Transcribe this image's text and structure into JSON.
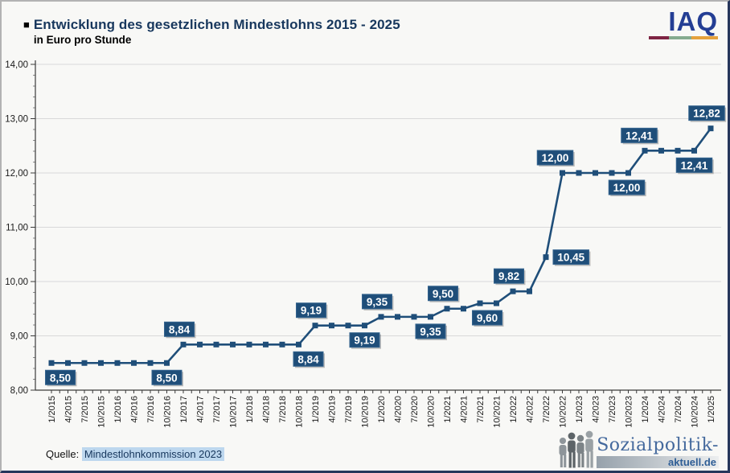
{
  "header": {
    "bullet": "■",
    "title": "Entwicklung des gesetzlichen Mindestlohns 2015 - 2025",
    "subtitle": "in Euro pro Stunde"
  },
  "iaq": {
    "text": "IAQ"
  },
  "source": {
    "prefix": "Quelle:",
    "reference": "Mindestlohnkommission 2023"
  },
  "branding": {
    "wordmark": "Sozialpolitik-",
    "domain": "aktuell.de"
  },
  "colors": {
    "line": "#1f4e79",
    "marker": "#1f4e79",
    "label_bg": "#1f4e79",
    "label_border": "#35648f",
    "label_text": "#ffffff",
    "title_text": "#17375d",
    "grid": "#d9d9d9",
    "axis": "#3b3b3b",
    "tick_minor": "#8a8a8a",
    "axis_text": "#1a1a1a",
    "source_highlight": "#bdd7ee",
    "iaq_blue": "#243e94",
    "iaq_bar": [
      "#7e2443",
      "#85ab8f",
      "#e5a13c"
    ],
    "logo_blue": "#44699d"
  },
  "chart_data": {
    "type": "line",
    "title": "Entwicklung des gesetzlichen Mindestlohns 2015 - 2025",
    "subtitle": "in Euro pro Stunde",
    "xlabel": "",
    "ylabel": "Euro pro Stunde",
    "ylim": [
      8,
      14
    ],
    "ymajor_step": 1,
    "yminor_step": 0.2,
    "ytick_labels": [
      "8,00",
      "9,00",
      "10,00",
      "11,00",
      "12,00",
      "13,00",
      "14,00"
    ],
    "grid": true,
    "legend_position": "none",
    "categories": [
      "1/2015",
      "4/2015",
      "7/2015",
      "10/2015",
      "1/2016",
      "4/2016",
      "7/2016",
      "10/2016",
      "1/2017",
      "4/2017",
      "7/2017",
      "10/2017",
      "1/2018",
      "4/2018",
      "7/2018",
      "10/2018",
      "1/2019",
      "4/2019",
      "7/2019",
      "10/2019",
      "1/2020",
      "4/2020",
      "7/2020",
      "10/2020",
      "1/2021",
      "4/2021",
      "7/2021",
      "10/2021",
      "1/2022",
      "4/2022",
      "7/2022",
      "10/2022",
      "1/2023",
      "4/2023",
      "7/2023",
      "10/2023",
      "1/2024",
      "4/2024",
      "7/2024",
      "10/2024",
      "1/2025"
    ],
    "values": [
      8.5,
      8.5,
      8.5,
      8.5,
      8.5,
      8.5,
      8.5,
      8.5,
      8.84,
      8.84,
      8.84,
      8.84,
      8.84,
      8.84,
      8.84,
      8.84,
      9.19,
      9.19,
      9.19,
      9.19,
      9.35,
      9.35,
      9.35,
      9.35,
      9.5,
      9.5,
      9.6,
      9.6,
      9.82,
      9.82,
      10.45,
      12.0,
      12.0,
      12.0,
      12.0,
      12.0,
      12.41,
      12.41,
      12.41,
      12.41,
      12.82
    ],
    "data_labels": [
      {
        "text": "8,50",
        "at": "1/2015",
        "placement": "below",
        "dx": 11
      },
      {
        "text": "8,50",
        "at": "10/2016",
        "placement": "below",
        "dx": 0
      },
      {
        "text": "8,84",
        "at": "1/2017",
        "placement": "above",
        "dx": 0
      },
      {
        "text": "8,84",
        "at": "10/2018",
        "placement": "below",
        "dx": 12
      },
      {
        "text": "9,19",
        "at": "1/2019",
        "placement": "above",
        "dx": 0
      },
      {
        "text": "9,19",
        "at": "10/2019",
        "placement": "below",
        "dx": 0
      },
      {
        "text": "9,35",
        "at": "1/2020",
        "placement": "above",
        "dx": 0
      },
      {
        "text": "9,35",
        "at": "10/2020",
        "placement": "below",
        "dx": 0
      },
      {
        "text": "9,50",
        "at": "1/2021",
        "placement": "above",
        "dx": 0
      },
      {
        "text": "9,60",
        "at": "7/2021",
        "placement": "below",
        "dx": 9
      },
      {
        "text": "9,82",
        "at": "1/2022",
        "placement": "above",
        "dx": 0
      },
      {
        "text": "10,45",
        "at": "7/2022",
        "placement": "right",
        "dx": 0
      },
      {
        "text": "12,00",
        "at": "10/2022",
        "placement": "above",
        "dx": -4
      },
      {
        "text": "12,00",
        "at": "10/2023",
        "placement": "below",
        "dx": -2
      },
      {
        "text": "12,41",
        "at": "1/2024",
        "placement": "above",
        "dx": -2
      },
      {
        "text": "12,41",
        "at": "10/2024",
        "placement": "below",
        "dx": 0
      },
      {
        "text": "12,82",
        "at": "1/2025",
        "placement": "above",
        "dx": 0
      }
    ]
  }
}
